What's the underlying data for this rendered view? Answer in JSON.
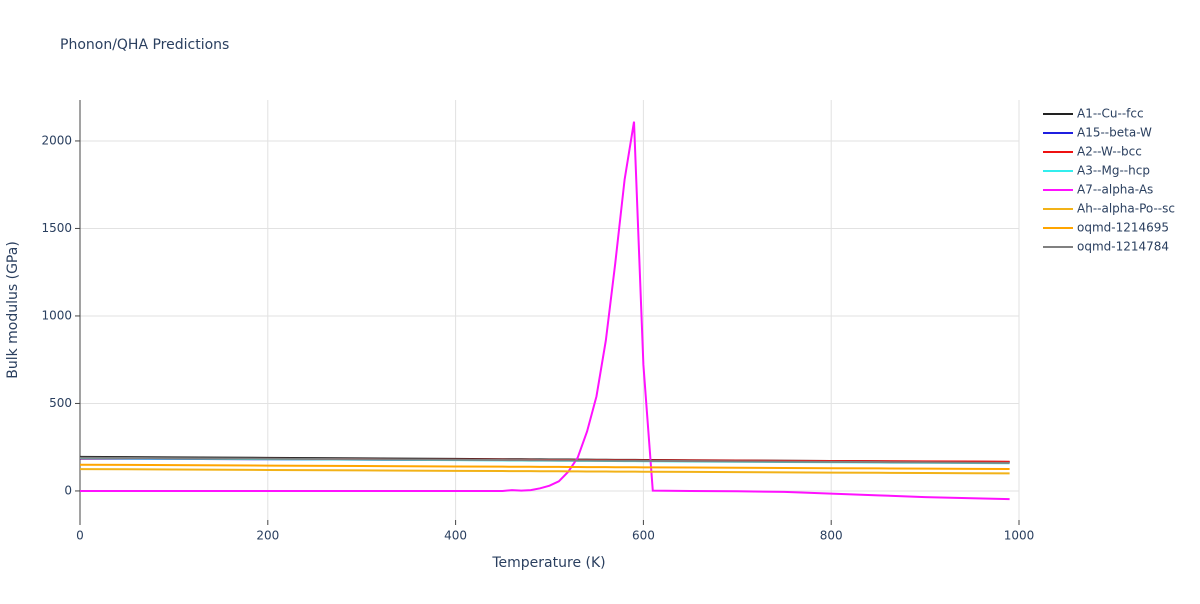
{
  "chart_data": {
    "type": "line",
    "title": "Phonon/QHA Predictions",
    "x_label": "Temperature (K)",
    "y_label": "Bulk modulus (GPa)",
    "x": [
      0,
      100,
      200,
      300,
      400,
      450,
      460,
      470,
      480,
      490,
      500,
      510,
      520,
      530,
      540,
      550,
      560,
      570,
      580,
      590,
      600,
      610,
      650,
      700,
      750,
      800,
      850,
      900,
      950,
      990
    ],
    "series": [
      {
        "name": "A1--Cu--fcc",
        "color": "#222222",
        "values": [
          195,
          192,
          189,
          186,
          183,
          181.5,
          181.2,
          180.9,
          180.6,
          180.3,
          180,
          179.7,
          179.4,
          179.1,
          178.8,
          178.5,
          178.2,
          177.9,
          177.6,
          177.3,
          177,
          176.7,
          175.5,
          174,
          172.5,
          171,
          169.5,
          168,
          166.5,
          165.3
        ]
      },
      {
        "name": "A15--beta-W",
        "color": "#1f1fe0",
        "values": [
          185,
          183,
          181,
          179,
          177,
          176,
          175.8,
          175.6,
          175.4,
          175.2,
          175,
          174.8,
          174.6,
          174.4,
          174.2,
          174,
          173.8,
          173.6,
          173.4,
          173.2,
          173,
          172.8,
          172,
          171,
          170,
          169,
          168,
          167,
          166,
          165.2
        ]
      },
      {
        "name": "A2--W--bcc",
        "color": "#ee1111",
        "values": [
          187,
          185,
          183,
          181,
          179,
          178,
          177.8,
          177.6,
          177.4,
          177.2,
          177,
          176.8,
          176.6,
          176.4,
          176.2,
          176,
          175.8,
          175.6,
          175.4,
          175.2,
          175,
          174.8,
          174,
          173,
          172,
          171,
          170,
          169,
          168,
          167.2
        ]
      },
      {
        "name": "A3--Mg--hcp",
        "color": "#33eeee",
        "values": [
          188,
          185,
          182,
          179,
          176,
          174.5,
          174.2,
          173.9,
          173.6,
          173.3,
          173,
          172.7,
          172.4,
          172.1,
          171.8,
          171.5,
          171.2,
          170.9,
          170.6,
          170.3,
          170,
          169.7,
          168.5,
          167,
          165.5,
          164,
          162.5,
          161,
          159.5,
          158.3
        ]
      },
      {
        "name": "A7--alpha-As",
        "color": "#ff11ff",
        "values": [
          0,
          0,
          0,
          0,
          0,
          0,
          5,
          2,
          5,
          15,
          30,
          55,
          110,
          190,
          340,
          540,
          860,
          1300,
          1780,
          2110,
          720,
          2,
          0,
          -2,
          -5,
          -15,
          -25,
          -35,
          -42,
          -47
        ]
      },
      {
        "name": "Ah--alpha-Po--sc",
        "color": "#f2b218",
        "values": [
          125,
          122.5,
          120,
          117.5,
          115,
          113.75,
          113.5,
          113.25,
          113,
          112.75,
          112.5,
          112.25,
          112,
          111.75,
          111.5,
          111.25,
          111,
          110.75,
          110.5,
          110.25,
          110,
          109.75,
          108.75,
          107.5,
          106.25,
          105,
          103.75,
          102.5,
          101.25,
          100.25
        ]
      },
      {
        "name": "oqmd-1214695",
        "color": "#ffa500",
        "values": [
          150,
          147.5,
          145,
          142.5,
          140,
          138.75,
          138.5,
          138.25,
          138,
          137.75,
          137.5,
          137.25,
          137,
          136.75,
          136.5,
          136.25,
          136,
          135.75,
          135.5,
          135.25,
          135,
          134.75,
          133.75,
          132.5,
          131.25,
          130,
          128.75,
          127.5,
          126.25,
          125.25
        ]
      },
      {
        "name": "oqmd-1214784",
        "color": "#808080",
        "values": [
          190,
          187,
          184,
          181,
          178,
          176.5,
          176.2,
          175.9,
          175.6,
          175.3,
          175,
          174.7,
          174.4,
          174.1,
          173.8,
          173.5,
          173.2,
          172.9,
          172.6,
          172.3,
          172,
          171.7,
          170.5,
          169,
          167.5,
          166,
          164.5,
          163,
          161.5,
          160.3
        ]
      }
    ],
    "xlim": [
      0,
      1000
    ],
    "xticks": [
      0,
      200,
      400,
      600,
      800,
      1000
    ],
    "ylim": [
      -166,
      2234
    ],
    "yticks": [
      0,
      500,
      1000,
      1500,
      2000
    ],
    "grid": true,
    "legend": "right"
  }
}
